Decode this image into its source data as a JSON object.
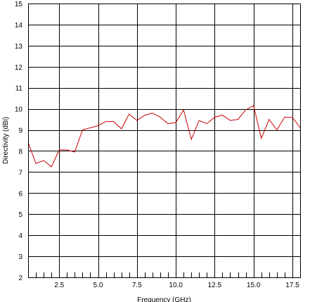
{
  "chart_data": {
    "type": "line",
    "title": "",
    "xlabel": "Frequency (GHz)",
    "ylabel": "Directivity (dBi)",
    "xlim": [
      0.5,
      18
    ],
    "ylim": [
      2,
      15
    ],
    "grid": true,
    "x_ticks": [
      2.5,
      5.0,
      7.5,
      10.0,
      12.5,
      15.0,
      17.5
    ],
    "x_tick_labels": [
      "2.5",
      "5.0",
      "7.5",
      "10.0",
      "12.5",
      "15.0",
      "17.5"
    ],
    "y_ticks": [
      2,
      3,
      4,
      5,
      6,
      7,
      8,
      9,
      10,
      11,
      12,
      13,
      14,
      15
    ],
    "y_tick_labels": [
      "2",
      "3",
      "4",
      "5",
      "6",
      "7",
      "8",
      "9",
      "10",
      "11",
      "12",
      "13",
      "14",
      "15"
    ],
    "series": [
      {
        "color": "#cc0000",
        "x": [
          0.5,
          1.0,
          1.5,
          2.0,
          2.5,
          3.0,
          3.5,
          4.0,
          4.5,
          5.0,
          5.5,
          6.0,
          6.5,
          7.0,
          7.5,
          8.0,
          8.5,
          9.0,
          9.5,
          10.0,
          10.5,
          11.0,
          11.5,
          12.0,
          12.5,
          13.0,
          13.5,
          14.0,
          14.5,
          15.0,
          15.5,
          16.0,
          16.5,
          17.0,
          17.5,
          18.0
        ],
        "y": [
          8.4,
          7.4,
          7.55,
          7.25,
          8.05,
          8.05,
          7.95,
          9.0,
          9.1,
          9.2,
          9.4,
          9.4,
          9.05,
          9.75,
          9.45,
          9.7,
          9.8,
          9.6,
          9.3,
          9.35,
          9.95,
          8.55,
          9.45,
          9.3,
          9.6,
          9.7,
          9.45,
          9.5,
          9.95,
          10.15,
          8.6,
          9.5,
          9.0,
          9.6,
          9.6,
          9.1
        ]
      }
    ]
  }
}
